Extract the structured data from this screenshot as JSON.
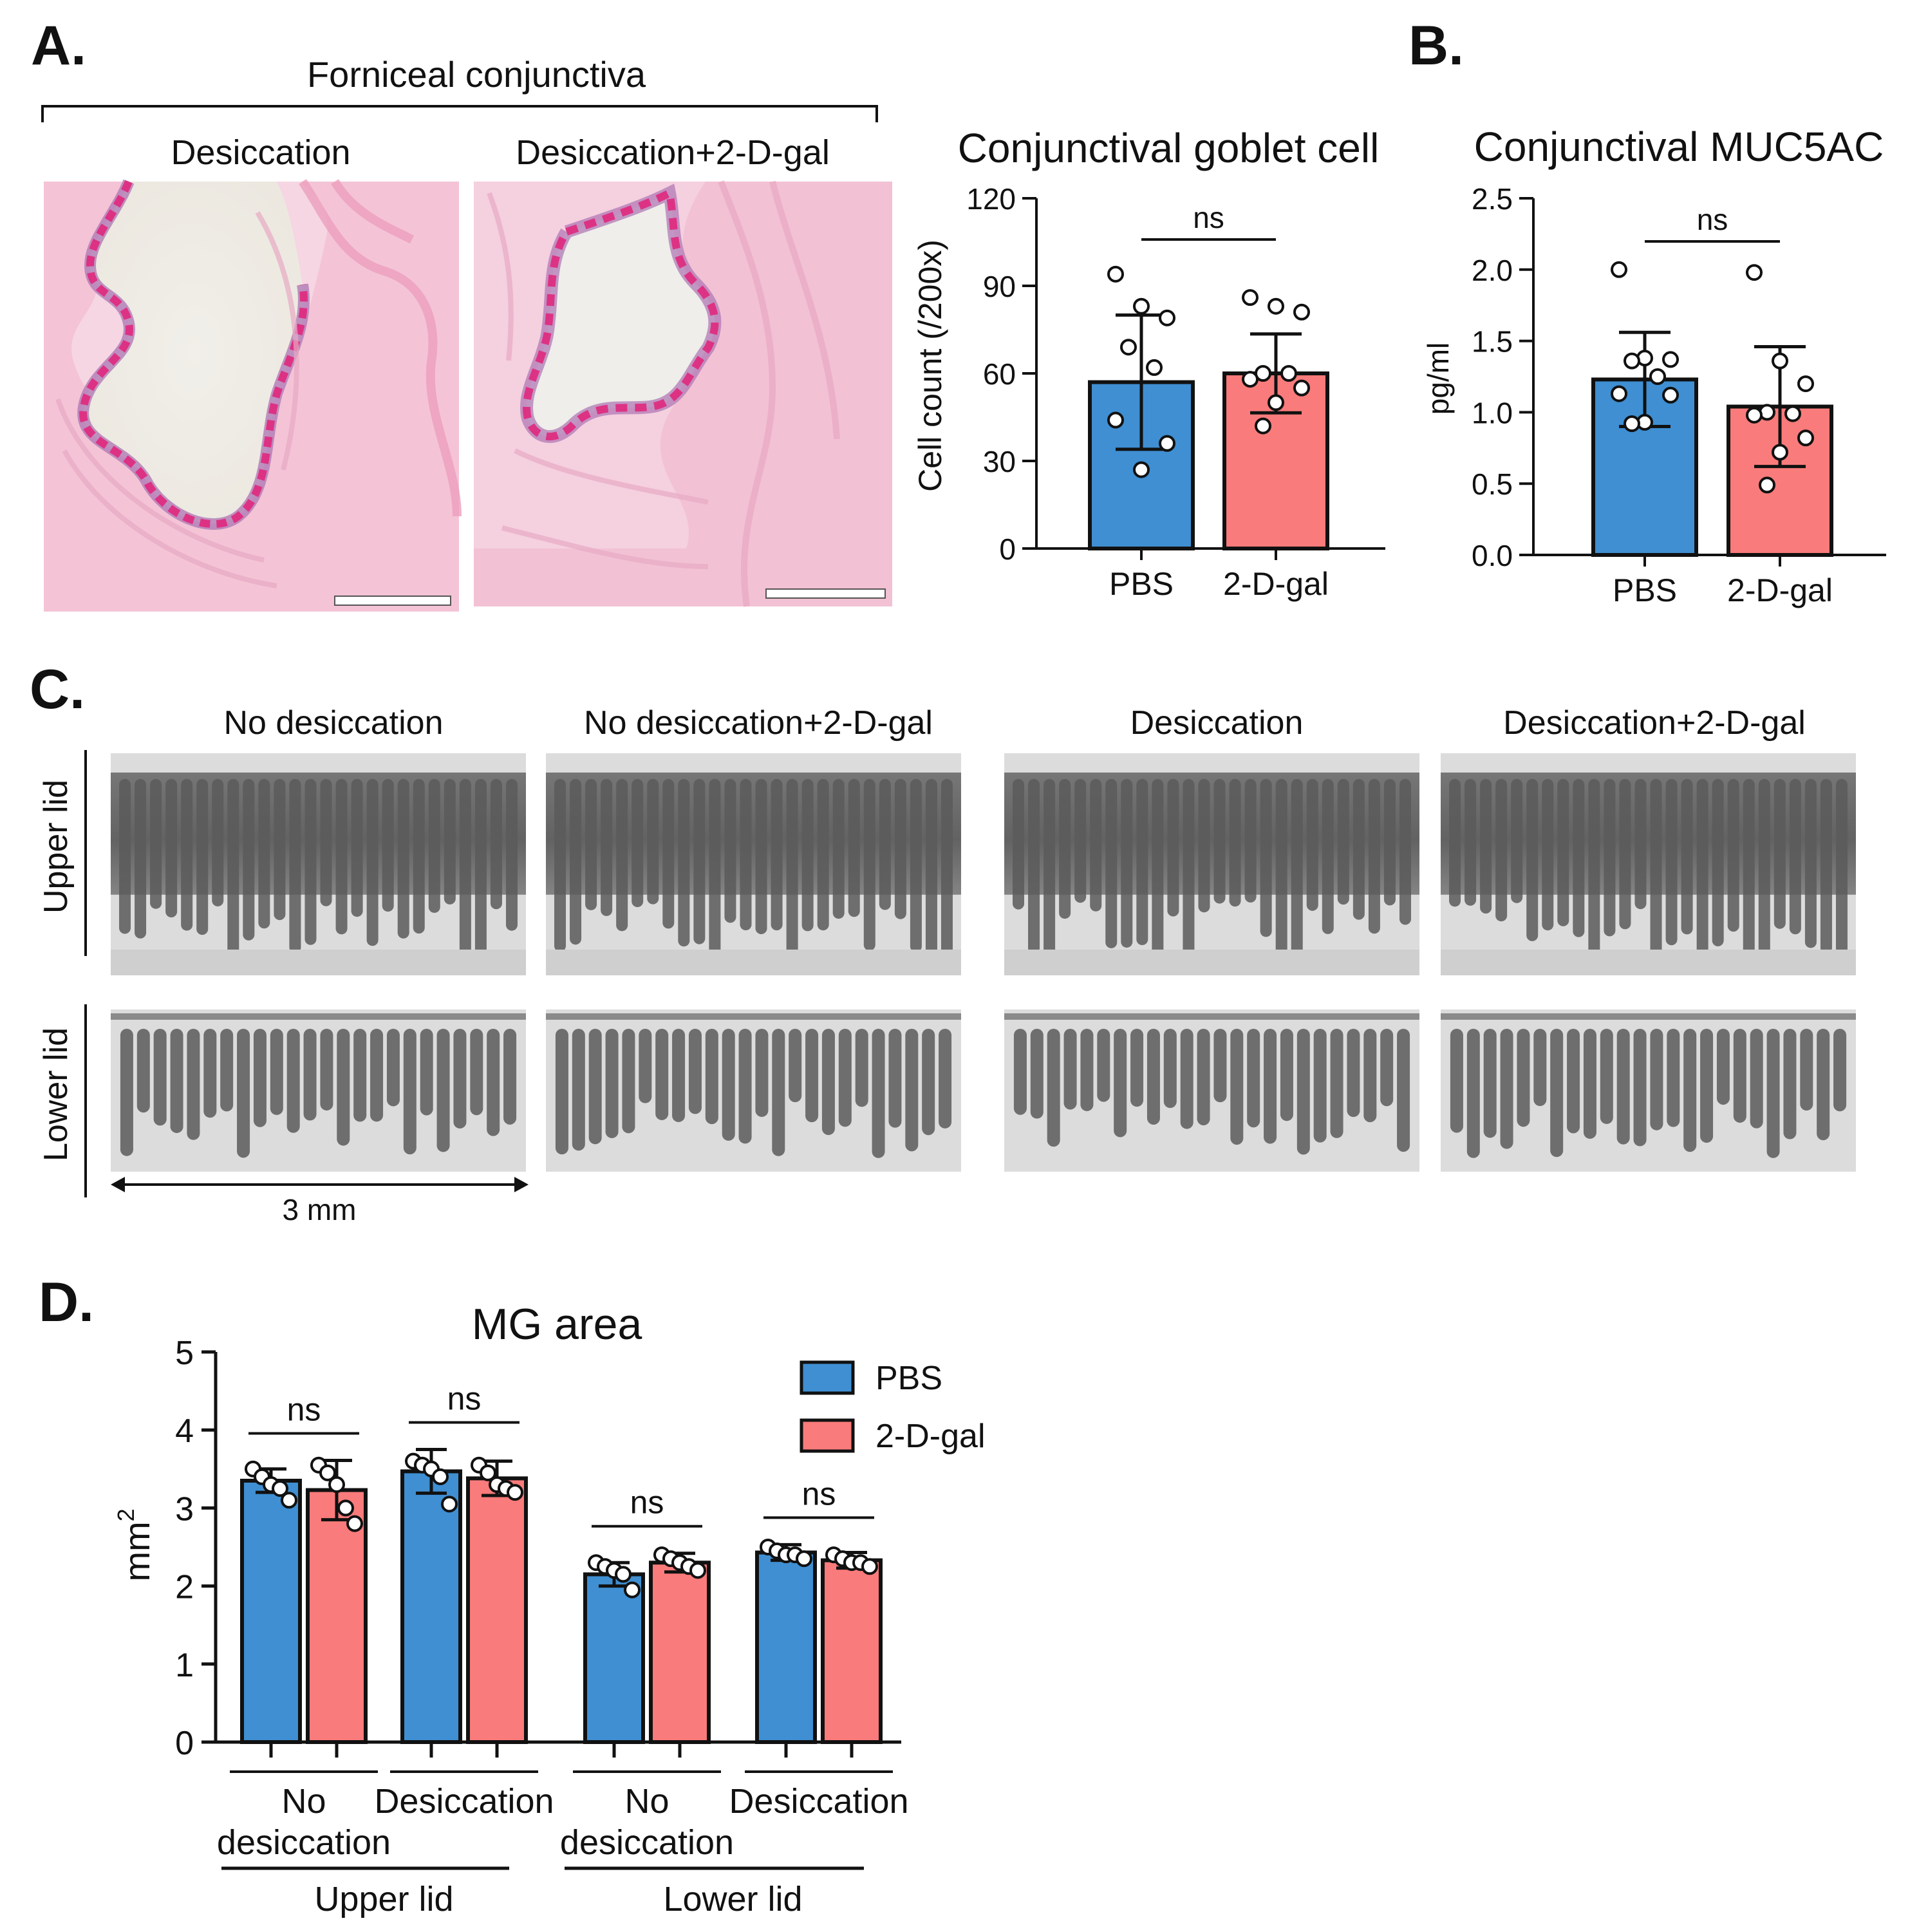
{
  "colors": {
    "pbs": "#3f8fd2",
    "dgal": "#fa7b7b",
    "axis": "#111111",
    "he_bg": "#f3cbd9",
    "goblet": "#e0287d",
    "mg_bg": "#dcdcdc",
    "mg_gland": "#5a5a5a"
  },
  "panel_a": {
    "letter": "A.",
    "title": "Forniceal conjunctiva",
    "image_labels": [
      "Desiccation",
      "Desiccation+2-D-gal"
    ]
  },
  "panel_b": {
    "letter": "B."
  },
  "panel_c": {
    "letter": "C.",
    "column_labels": [
      "No desiccation",
      "No desiccation+2-D-gal",
      "Desiccation",
      "Desiccation+2-D-gal"
    ],
    "row_labels": [
      "Upper lid",
      "Lower lid"
    ],
    "scale_label": "3 mm"
  },
  "panel_d": {
    "letter": "D."
  },
  "chart_data": [
    {
      "id": "goblet",
      "type": "bar",
      "title": "Conjunctival goblet cell",
      "ylabel": "Cell count (/200x)",
      "ylim": [
        0,
        120
      ],
      "yticks": [
        "0",
        "30",
        "60",
        "90",
        "120"
      ],
      "categories": [
        "PBS",
        "2-D-gal"
      ],
      "values": [
        57,
        60
      ],
      "sd": [
        23,
        13.5
      ],
      "points": [
        [
          94,
          83,
          79,
          69,
          62,
          44,
          36,
          27
        ],
        [
          86,
          83,
          81,
          60,
          60,
          58,
          55,
          50,
          42
        ]
      ],
      "annotation": "ns"
    },
    {
      "id": "muc5ac",
      "type": "bar",
      "title": "Conjunctival MUC5AC",
      "ylabel": "pg/ml",
      "ylim": [
        0,
        2.5
      ],
      "yticks": [
        "0.0",
        "0.5",
        "1.0",
        "1.5",
        "2.0",
        "2.5"
      ],
      "categories": [
        "PBS",
        "2-D-gal"
      ],
      "values": [
        1.23,
        1.04
      ],
      "sd": [
        0.33,
        0.42
      ],
      "points": [
        [
          2.0,
          1.38,
          1.37,
          1.36,
          1.25,
          1.13,
          1.12,
          0.93,
          0.92
        ],
        [
          1.98,
          1.36,
          1.2,
          1.0,
          0.99,
          0.98,
          0.82,
          0.72,
          0.49
        ]
      ],
      "annotation": "ns"
    },
    {
      "id": "mg",
      "type": "bar",
      "title": "MG area",
      "ylabel": "mm",
      "ylabel_sup": "2",
      "ylim": [
        0,
        5
      ],
      "yticks": [
        "0",
        "1",
        "2",
        "3",
        "4",
        "5"
      ],
      "groups": [
        {
          "label_lines": [
            "No",
            "desiccation"
          ],
          "lid": "Upper lid"
        },
        {
          "label_lines": [
            "Desiccation"
          ],
          "lid": "Upper lid"
        },
        {
          "label_lines": [
            "No",
            "desiccation"
          ],
          "lid": "Lower lid"
        },
        {
          "label_lines": [
            "Desiccation"
          ],
          "lid": "Lower lid"
        }
      ],
      "lid_labels": [
        "Upper lid",
        "Lower lid"
      ],
      "series": [
        {
          "name": "PBS",
          "values": [
            3.35,
            3.47,
            2.15,
            2.43
          ],
          "sd": [
            0.15,
            0.28,
            0.15,
            0.1
          ],
          "points": [
            [
              3.5,
              3.4,
              3.3,
              3.25,
              3.1
            ],
            [
              3.6,
              3.55,
              3.5,
              3.4,
              3.05
            ],
            [
              2.3,
              2.25,
              2.2,
              2.15,
              1.95
            ],
            [
              2.5,
              2.45,
              2.4,
              2.4,
              2.35
            ]
          ]
        },
        {
          "name": "2-D-gal",
          "values": [
            3.23,
            3.38,
            2.3,
            2.33
          ],
          "sd": [
            0.38,
            0.22,
            0.12,
            0.1
          ],
          "points": [
            [
              3.55,
              3.45,
              3.3,
              3.0,
              2.8
            ],
            [
              3.55,
              3.45,
              3.3,
              3.25,
              3.2
            ],
            [
              2.4,
              2.35,
              2.3,
              2.25,
              2.2
            ],
            [
              2.4,
              2.35,
              2.3,
              2.3,
              2.25
            ]
          ]
        }
      ],
      "annotations": [
        "ns",
        "ns",
        "ns",
        "ns"
      ]
    }
  ]
}
